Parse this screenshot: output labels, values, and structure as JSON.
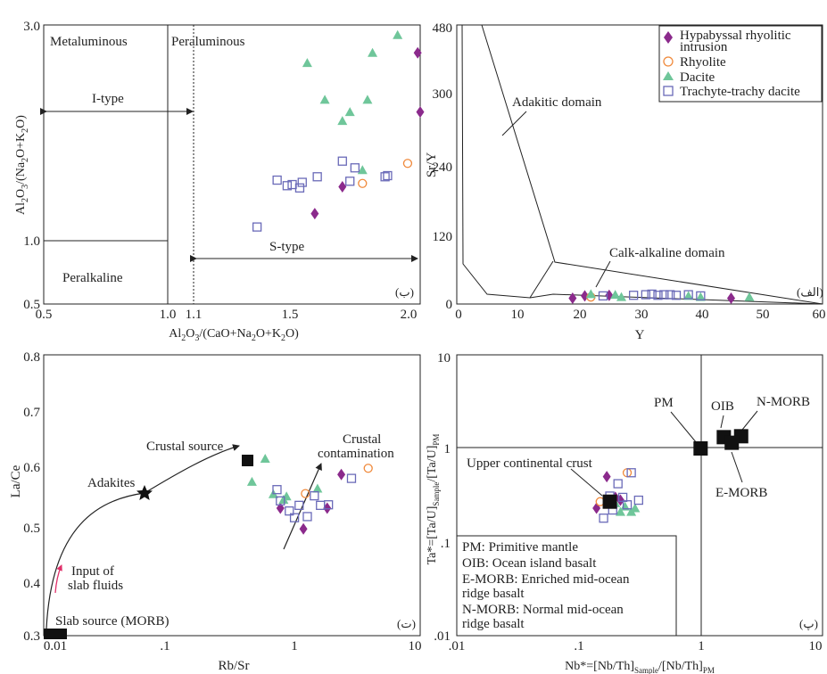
{
  "colors": {
    "hypabyssal": "#8b2a8c",
    "rhyolite": "#f08a3c",
    "dacite": "#6fc69a",
    "trachyte": "#6a6ab8",
    "ink": "#222222",
    "arrow_red": "#e0306a"
  },
  "legend": {
    "hyp_line1": "Hypabyssal rhyolitic",
    "hyp_line2": "intrusion",
    "rhyolite": "Rhyolite",
    "dacite": "Dacite",
    "trachyte": "Trachyte-trachy dacite"
  },
  "panel_a": {
    "corner_label": "(ب)",
    "xlabel_main": "Al",
    "xlabel": "Al2O3/(CaO+Na2O+K2O)",
    "ylabel": "Al2O3/(Na2O+K2O)",
    "xticks": [
      "0.5",
      "1.0",
      "1.1",
      "1.5",
      "2.0"
    ],
    "yticks": [
      "0.5",
      "1.0",
      "3.0"
    ],
    "text_metaluminous": "Metaluminous",
    "text_peraluminous": "Peraluminous",
    "text_itype": "I-type",
    "text_stype": "S-type",
    "text_peralkaline": "Peralkaline"
  },
  "panel_b": {
    "corner_label": "(الف)",
    "xlabel": "Y",
    "ylabel": "Sr/Y",
    "xticks": [
      "0",
      "10",
      "20",
      "30",
      "40",
      "50",
      "60"
    ],
    "yticks": [
      "0",
      "120",
      "240",
      "300",
      "480"
    ],
    "text_adakitic": "Adakitic domain",
    "text_calk": "Calk-alkaline domain"
  },
  "panel_c": {
    "corner_label": "(ت)",
    "xlabel": "Rb/Sr",
    "ylabel": "La/Ce",
    "xticks": [
      "0.01",
      ".1",
      "1",
      "10"
    ],
    "yticks": [
      "0.3",
      "0.4",
      "0.5",
      "0.6",
      "0.7",
      "0.8"
    ],
    "text_crustal_source": "Crustal source",
    "text_crustal_contam_1": "Crustal",
    "text_crustal_contam_2": "contamination",
    "text_adakites": "Adakites",
    "text_input_1": "Input of",
    "text_input_2": "slab fluids",
    "text_slab_source": "Slab source (MORB)"
  },
  "panel_d": {
    "corner_label": "(پ)",
    "xlabel": "Nb*=[Nb/Th]Sample/[Nb/Th]PM",
    "ylabel": "Ta*=[Ta/U]Sample/[Ta/U]PM",
    "xticks": [
      ".01",
      ".1",
      "1",
      "10"
    ],
    "yticks": [
      ".01",
      ".1",
      "1",
      "10"
    ],
    "text_pm": "PM",
    "text_oib": "OIB",
    "text_nmorb": "N-MORB",
    "text_emorb": "E-MORB",
    "text_ucc": "Upper continental crust",
    "note_lines": [
      "PM: Primitive mantle",
      "OIB: Ocean island basalt",
      "E-MORB: Enriched mid-ocean",
      "ridge basalt",
      "N-MORB: Normal mid-ocean",
      "ridge basalt"
    ]
  },
  "chart_data": [
    {
      "type": "scatter",
      "panel": "(ب)",
      "xlabel": "Al2O3/(CaO+Na2O+K2O)",
      "ylabel": "Al2O3/(Na2O+K2O)",
      "xlim": [
        0.5,
        2.0
      ],
      "ylim": [
        0.5,
        3.0
      ],
      "series": [
        {
          "name": "Hypabyssal rhyolitic intrusion",
          "x": [
            1.58,
            1.69,
            1.99,
            2.0
          ],
          "y": [
            1.31,
            1.55,
            2.75,
            2.22
          ]
        },
        {
          "name": "Rhyolite",
          "x": [
            1.77,
            1.95
          ],
          "y": [
            1.58,
            1.76
          ]
        },
        {
          "name": "Dacite",
          "x": [
            1.55,
            1.62,
            1.69,
            1.72,
            1.77,
            1.79,
            1.81,
            1.91
          ],
          "y": [
            2.66,
            2.33,
            2.14,
            2.22,
            1.7,
            2.33,
            2.75,
            2.91
          ]
        },
        {
          "name": "Trachyte-trachy dacite",
          "x": [
            1.35,
            1.43,
            1.47,
            1.49,
            1.52,
            1.53,
            1.59,
            1.69,
            1.72,
            1.74,
            1.86,
            1.87
          ],
          "y": [
            1.19,
            1.61,
            1.56,
            1.57,
            1.54,
            1.59,
            1.64,
            1.78,
            1.6,
            1.72,
            1.64,
            1.65
          ]
        }
      ]
    },
    {
      "type": "scatter",
      "panel": "(الف)",
      "xlabel": "Y",
      "ylabel": "Sr/Y",
      "xlim": [
        0,
        60
      ],
      "ylim": [
        0,
        480
      ],
      "series": [
        {
          "name": "Hypabyssal rhyolitic intrusion",
          "x": [
            19,
            21,
            25,
            45
          ],
          "y": [
            10,
            14,
            15,
            10
          ]
        },
        {
          "name": "Rhyolite",
          "x": [
            22
          ],
          "y": [
            12
          ]
        },
        {
          "name": "Dacite",
          "x": [
            22,
            26,
            27,
            38,
            40,
            48
          ],
          "y": [
            17,
            16,
            12,
            14,
            12,
            12
          ]
        },
        {
          "name": "Trachyte-trachy dacite",
          "x": [
            24,
            29,
            31,
            32,
            33,
            34,
            35,
            36,
            38,
            40
          ],
          "y": [
            14,
            15,
            16,
            17,
            15,
            16,
            16,
            15,
            16,
            14
          ]
        }
      ]
    },
    {
      "type": "scatter",
      "panel": "(ت)",
      "xlabel": "Rb/Sr",
      "ylabel": "La/Ce",
      "xscale": "log",
      "xlim": [
        0.006,
        13
      ],
      "ylim": [
        0.3,
        0.8
      ],
      "series": [
        {
          "name": "Hypabyssal rhyolitic intrusion",
          "x": [
            0.75,
            1.2,
            1.95,
            2.6
          ],
          "y": [
            0.527,
            0.49,
            0.527,
            0.587
          ]
        },
        {
          "name": "Rhyolite",
          "x": [
            1.25,
            4.5
          ],
          "y": [
            0.553,
            0.598
          ]
        },
        {
          "name": "Dacite",
          "x": [
            0.42,
            0.55,
            0.65,
            0.8,
            0.85,
            1.6
          ],
          "y": [
            0.574,
            0.615,
            0.552,
            0.542,
            0.548,
            0.562
          ]
        },
        {
          "name": "Trachyte-trachy dacite",
          "x": [
            0.7,
            0.75,
            0.9,
            1.0,
            1.1,
            1.3,
            1.5,
            1.7,
            2.0,
            3.2
          ],
          "y": [
            0.56,
            0.54,
            0.522,
            0.51,
            0.532,
            0.512,
            0.549,
            0.532,
            0.533,
            0.58
          ]
        }
      ]
    },
    {
      "type": "scatter",
      "panel": "(پ)",
      "xlabel": "Nb*=[Nb/Th]Sample/[Nb/Th]PM",
      "ylabel": "Ta*=[Ta/U]Sample/[Ta/U]PM",
      "xscale": "log",
      "yscale": "log",
      "xlim": [
        0.01,
        10
      ],
      "ylim": [
        0.01,
        10
      ],
      "reference_points": [
        {
          "name": "PM",
          "x": 1.0,
          "y": 1.0
        },
        {
          "name": "OIB",
          "x": 1.55,
          "y": 1.32
        },
        {
          "name": "N-MORB",
          "x": 2.15,
          "y": 1.35
        },
        {
          "name": "E-MORB",
          "x": 1.8,
          "y": 1.15
        },
        {
          "name": "Upper continental crust",
          "x": 0.18,
          "y": 0.27
        }
      ],
      "series": [
        {
          "name": "Hypabyssal rhyolitic intrusion",
          "x": [
            0.14,
            0.17,
            0.2,
            0.22
          ],
          "y": [
            0.23,
            0.5,
            0.3,
            0.28
          ]
        },
        {
          "name": "Rhyolite",
          "x": [
            0.15,
            0.25
          ],
          "y": [
            0.27,
            0.55
          ]
        },
        {
          "name": "Dacite",
          "x": [
            0.2,
            0.22,
            0.24,
            0.27,
            0.29
          ],
          "y": [
            0.26,
            0.21,
            0.24,
            0.21,
            0.23
          ]
        },
        {
          "name": "Trachyte-trachy dacite",
          "x": [
            0.16,
            0.18,
            0.19,
            0.21,
            0.23,
            0.25,
            0.27,
            0.31
          ],
          "y": [
            0.18,
            0.31,
            0.22,
            0.42,
            0.3,
            0.25,
            0.55,
            0.28
          ]
        }
      ]
    }
  ]
}
